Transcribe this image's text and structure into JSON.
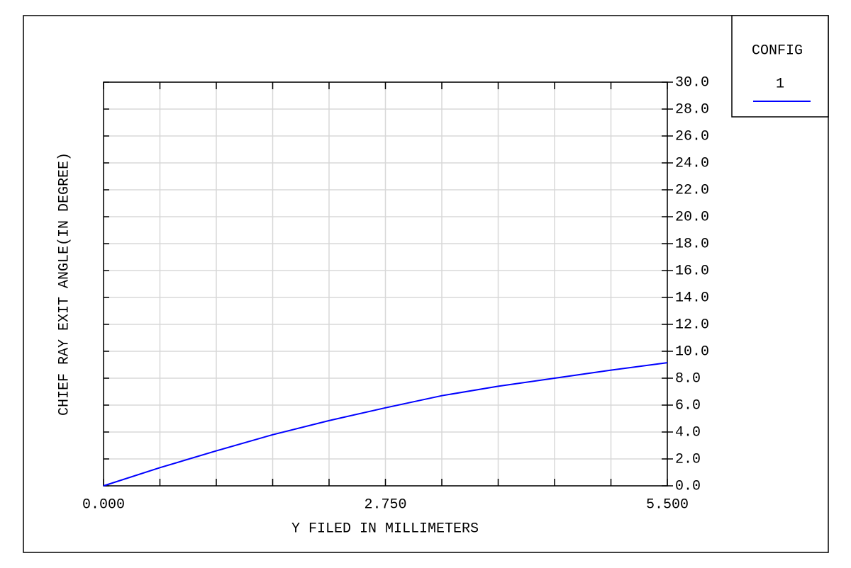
{
  "chart_data": {
    "type": "line",
    "y_label": "CHIEF RAY EXIT ANGLE(IN DEGREE)",
    "x_label": "Y FILED IN MILLIMETERS",
    "legend_title": "CONFIG",
    "x": [
      0,
      0.55,
      1.1,
      1.65,
      2.2,
      2.75,
      3.3,
      3.85,
      4.4,
      4.95,
      5.5
    ],
    "series": [
      {
        "name": "1",
        "color": "#0000ff",
        "values": [
          0,
          1.35,
          2.6,
          3.8,
          4.85,
          5.8,
          6.7,
          7.4,
          8.0,
          8.6,
          9.15
        ]
      }
    ],
    "xlim": [
      0,
      5.5
    ],
    "xticks": [
      {
        "value": 0,
        "label": "0.000"
      },
      {
        "value": 2.75,
        "label": "2.750"
      },
      {
        "value": 5.5,
        "label": "5.500"
      }
    ],
    "xminorticks": [
      0.55,
      1.1,
      1.65,
      2.2,
      3.3,
      3.85,
      4.4,
      4.95
    ],
    "ylim": [
      0,
      30
    ],
    "yticks": [
      {
        "value": 0,
        "label": "0.0"
      },
      {
        "value": 2,
        "label": "2.0"
      },
      {
        "value": 4,
        "label": "4.0"
      },
      {
        "value": 6,
        "label": "6.0"
      },
      {
        "value": 8,
        "label": "8.0"
      },
      {
        "value": 10,
        "label": "10.0"
      },
      {
        "value": 12,
        "label": "12.0"
      },
      {
        "value": 14,
        "label": "14.0"
      },
      {
        "value": 16,
        "label": "16.0"
      },
      {
        "value": 18,
        "label": "18.0"
      },
      {
        "value": 20,
        "label": "20.0"
      },
      {
        "value": 22,
        "label": "22.0"
      },
      {
        "value": 24,
        "label": "24.0"
      },
      {
        "value": 26,
        "label": "26.0"
      },
      {
        "value": 28,
        "label": "28.0"
      },
      {
        "value": 30,
        "label": "30.0"
      }
    ],
    "grid": true
  }
}
